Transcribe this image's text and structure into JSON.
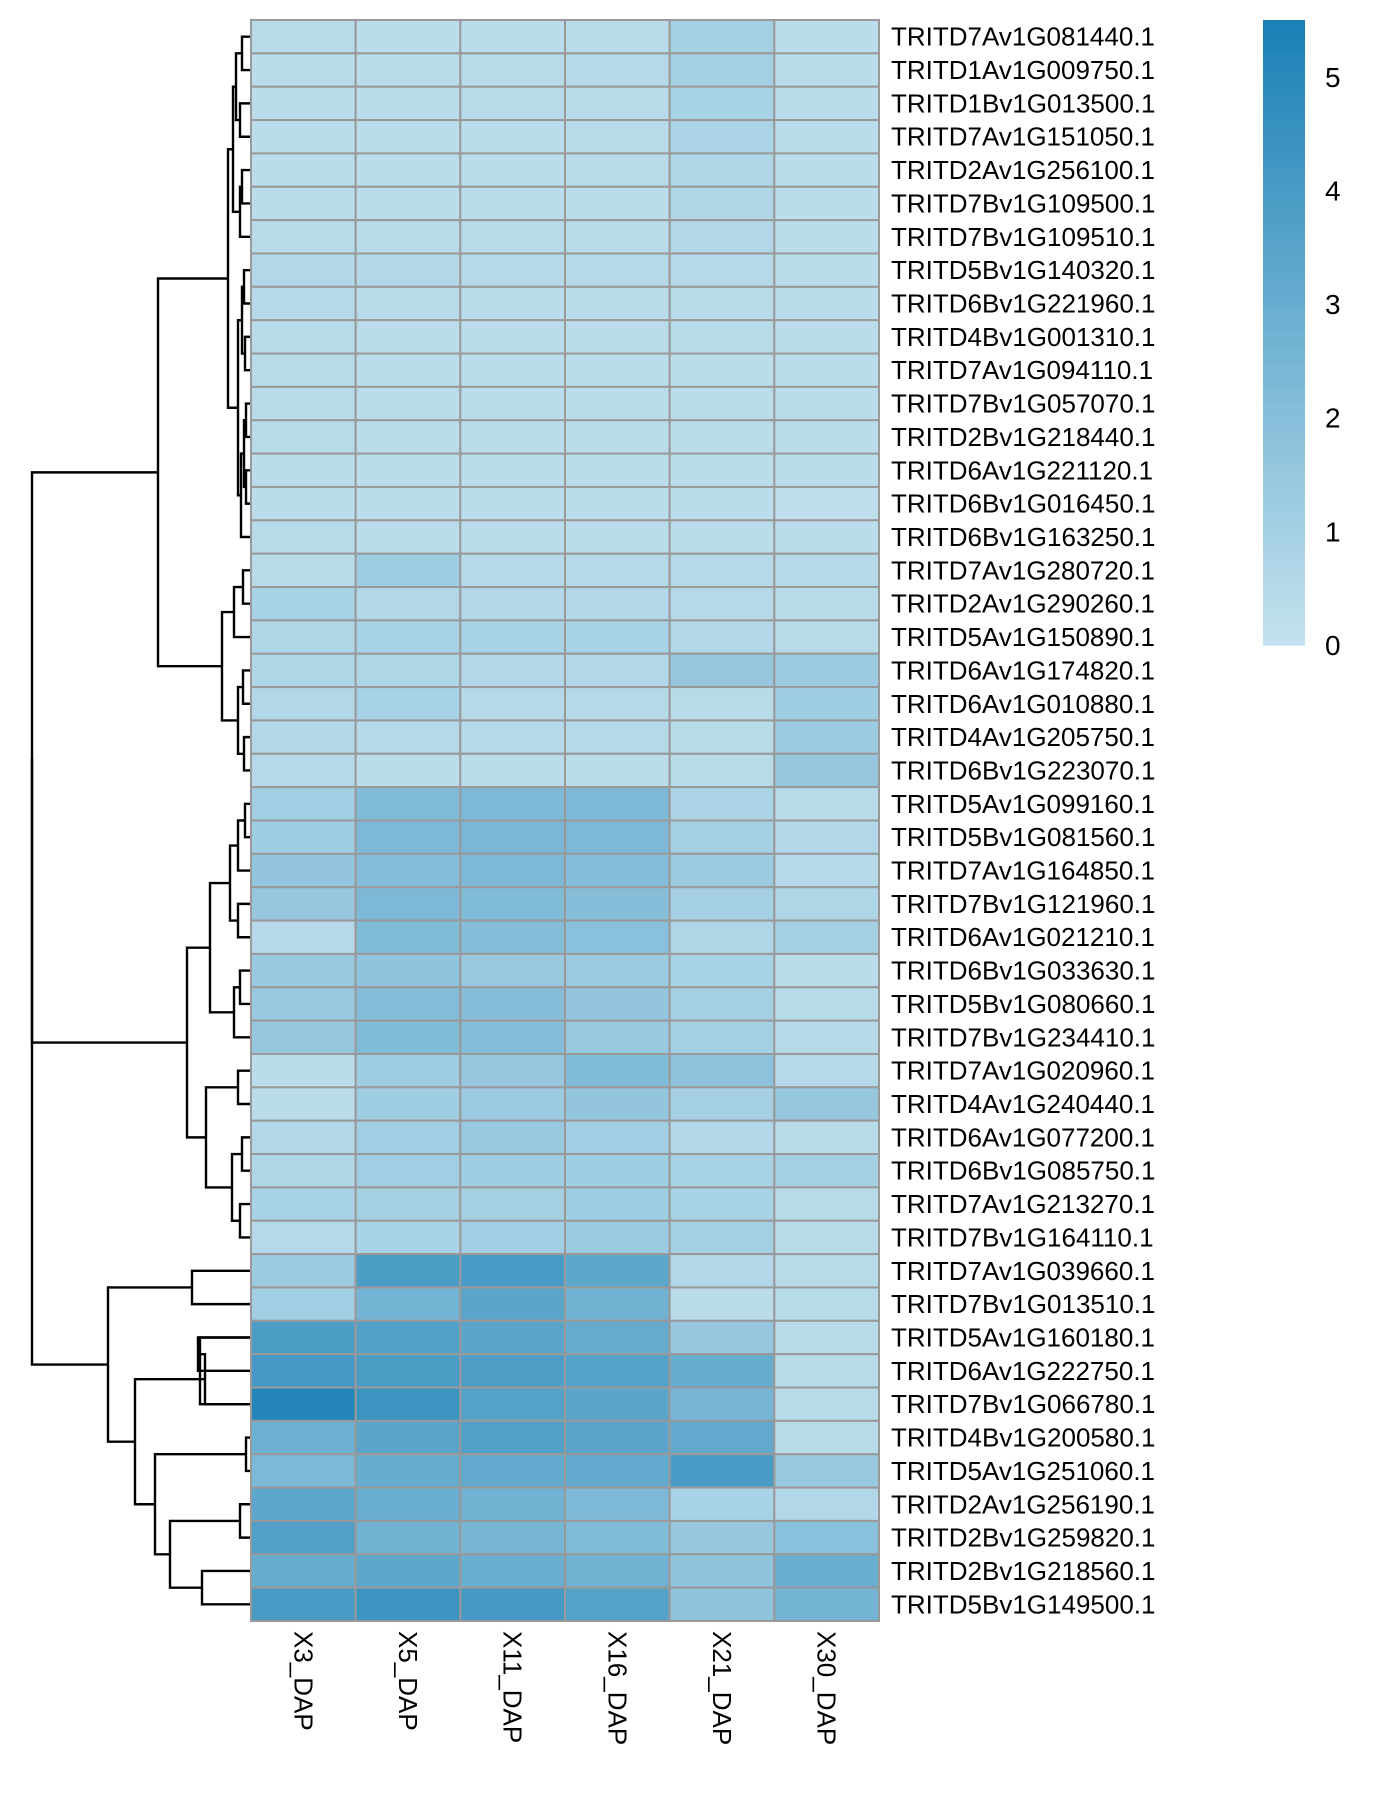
{
  "chart_data": {
    "type": "heatmap",
    "title": "",
    "xlabel": "",
    "ylabel": "",
    "columns": [
      "X3_DAP",
      "X5_DAP",
      "X11_DAP",
      "X16_DAP",
      "X21_DAP",
      "X30_DAP"
    ],
    "rows": [
      "TRITD7Av1G081440.1",
      "TRITD1Av1G009750.1",
      "TRITD1Bv1G013500.1",
      "TRITD7Av1G151050.1",
      "TRITD2Av1G256100.1",
      "TRITD7Bv1G109500.1",
      "TRITD7Bv1G109510.1",
      "TRITD5Bv1G140320.1",
      "TRITD6Bv1G221960.1",
      "TRITD4Bv1G001310.1",
      "TRITD7Av1G094110.1",
      "TRITD7Bv1G057070.1",
      "TRITD2Bv1G218440.1",
      "TRITD6Av1G221120.1",
      "TRITD6Bv1G016450.1",
      "TRITD6Bv1G163250.1",
      "TRITD7Av1G280720.1",
      "TRITD2Av1G290260.1",
      "TRITD5Av1G150890.1",
      "TRITD6Av1G174820.1",
      "TRITD6Av1G010880.1",
      "TRITD4Av1G205750.1",
      "TRITD6Bv1G223070.1",
      "TRITD5Av1G099160.1",
      "TRITD5Bv1G081560.1",
      "TRITD7Av1G164850.1",
      "TRITD7Bv1G121960.1",
      "TRITD6Av1G021210.1",
      "TRITD6Bv1G033630.1",
      "TRITD5Bv1G080660.1",
      "TRITD7Bv1G234410.1",
      "TRITD7Av1G020960.1",
      "TRITD4Av1G240440.1",
      "TRITD6Av1G077200.1",
      "TRITD6Bv1G085750.1",
      "TRITD7Av1G213270.1",
      "TRITD7Bv1G164110.1",
      "TRITD7Av1G039660.1",
      "TRITD7Bv1G013510.1",
      "TRITD5Av1G160180.1",
      "TRITD6Av1G222750.1",
      "TRITD7Bv1G066780.1",
      "TRITD4Bv1G200580.1",
      "TRITD5Av1G251060.1",
      "TRITD2Av1G256190.1",
      "TRITD2Bv1G259820.1",
      "TRITD2Bv1G218560.1",
      "TRITD5Bv1G149500.1"
    ],
    "values": [
      [
        0.4,
        0.3,
        0.3,
        0.4,
        1.0,
        0.3
      ],
      [
        0.3,
        0.3,
        0.4,
        0.5,
        1.0,
        0.3
      ],
      [
        0.3,
        0.3,
        0.4,
        0.4,
        0.9,
        0.3
      ],
      [
        0.3,
        0.3,
        0.3,
        0.4,
        0.8,
        0.3
      ],
      [
        0.3,
        0.3,
        0.3,
        0.4,
        0.7,
        0.3
      ],
      [
        0.3,
        0.3,
        0.3,
        0.3,
        0.7,
        0.3
      ],
      [
        0.4,
        0.4,
        0.4,
        0.4,
        0.6,
        0.3
      ],
      [
        0.6,
        0.6,
        0.5,
        0.5,
        0.5,
        0.3
      ],
      [
        0.5,
        0.4,
        0.3,
        0.3,
        0.4,
        0.3
      ],
      [
        0.4,
        0.3,
        0.3,
        0.3,
        0.4,
        0.3
      ],
      [
        0.4,
        0.3,
        0.3,
        0.3,
        0.3,
        0.3
      ],
      [
        0.4,
        0.3,
        0.3,
        0.3,
        0.3,
        0.3
      ],
      [
        0.4,
        0.3,
        0.3,
        0.3,
        0.3,
        0.3
      ],
      [
        0.3,
        0.3,
        0.3,
        0.3,
        0.3,
        0.3
      ],
      [
        0.3,
        0.3,
        0.3,
        0.3,
        0.3,
        0.2
      ],
      [
        0.4,
        0.3,
        0.3,
        0.3,
        0.3,
        0.3
      ],
      [
        0.4,
        1.2,
        0.5,
        0.5,
        0.5,
        0.5
      ],
      [
        0.9,
        0.6,
        0.6,
        0.6,
        0.5,
        0.4
      ],
      [
        0.7,
        0.9,
        0.9,
        0.9,
        0.6,
        0.4
      ],
      [
        0.7,
        0.7,
        0.6,
        0.6,
        1.5,
        1.3
      ],
      [
        0.6,
        0.9,
        0.5,
        0.5,
        0.4,
        1.2
      ],
      [
        0.6,
        0.5,
        0.5,
        0.5,
        0.4,
        1.3
      ],
      [
        0.5,
        0.3,
        0.3,
        0.3,
        0.4,
        1.5
      ],
      [
        1.1,
        2.2,
        2.3,
        2.3,
        0.8,
        0.4
      ],
      [
        1.2,
        2.3,
        2.4,
        2.3,
        1.0,
        0.6
      ],
      [
        1.6,
        2.1,
        2.3,
        2.1,
        1.3,
        0.5
      ],
      [
        1.5,
        2.3,
        2.2,
        2.0,
        1.0,
        0.7
      ],
      [
        0.5,
        2.2,
        2.1,
        1.9,
        0.7,
        1.0
      ],
      [
        1.4,
        1.7,
        1.4,
        1.3,
        0.9,
        0.3
      ],
      [
        1.4,
        2.1,
        2.0,
        1.6,
        1.0,
        0.4
      ],
      [
        1.5,
        2.2,
        2.1,
        1.4,
        1.0,
        0.5
      ],
      [
        0.3,
        1.2,
        1.5,
        2.2,
        1.8,
        0.5
      ],
      [
        0.3,
        1.2,
        1.3,
        1.6,
        1.0,
        1.5
      ],
      [
        0.6,
        1.1,
        1.4,
        1.1,
        0.6,
        0.4
      ],
      [
        0.7,
        1.1,
        1.2,
        1.2,
        0.9,
        1.0
      ],
      [
        0.9,
        1.0,
        1.0,
        1.2,
        0.9,
        0.4
      ],
      [
        0.5,
        0.9,
        1.1,
        1.3,
        1.0,
        0.4
      ],
      [
        1.3,
        3.9,
        4.0,
        3.3,
        0.6,
        0.4
      ],
      [
        1.1,
        2.6,
        3.4,
        2.7,
        0.3,
        0.4
      ],
      [
        3.9,
        3.7,
        3.4,
        3.1,
        1.5,
        0.4
      ],
      [
        4.1,
        3.9,
        3.8,
        3.6,
        3.0,
        0.4
      ],
      [
        5.2,
        4.4,
        3.6,
        3.4,
        2.5,
        0.4
      ],
      [
        2.8,
        3.4,
        3.7,
        3.4,
        3.2,
        0.4
      ],
      [
        2.3,
        3.0,
        3.2,
        3.2,
        4.0,
        1.4
      ],
      [
        3.3,
        2.9,
        2.7,
        2.3,
        0.9,
        0.6
      ],
      [
        3.7,
        2.7,
        2.5,
        2.2,
        1.5,
        1.9
      ],
      [
        3.0,
        3.3,
        2.9,
        2.7,
        1.7,
        2.9
      ],
      [
        4.0,
        4.4,
        4.1,
        3.6,
        1.7,
        2.6
      ]
    ],
    "colorbar": {
      "min": 0,
      "max": 5.5,
      "ticks": [
        "0",
        "1",
        "2",
        "3",
        "4",
        "5"
      ],
      "tick_values": [
        0,
        1,
        2,
        3,
        4,
        5
      ],
      "low_color": "#c4e2ee",
      "high_color": "#1a80b6"
    },
    "cell_border_color": "#999999",
    "row_dendrogram": true,
    "legend_placement": "top-right"
  }
}
